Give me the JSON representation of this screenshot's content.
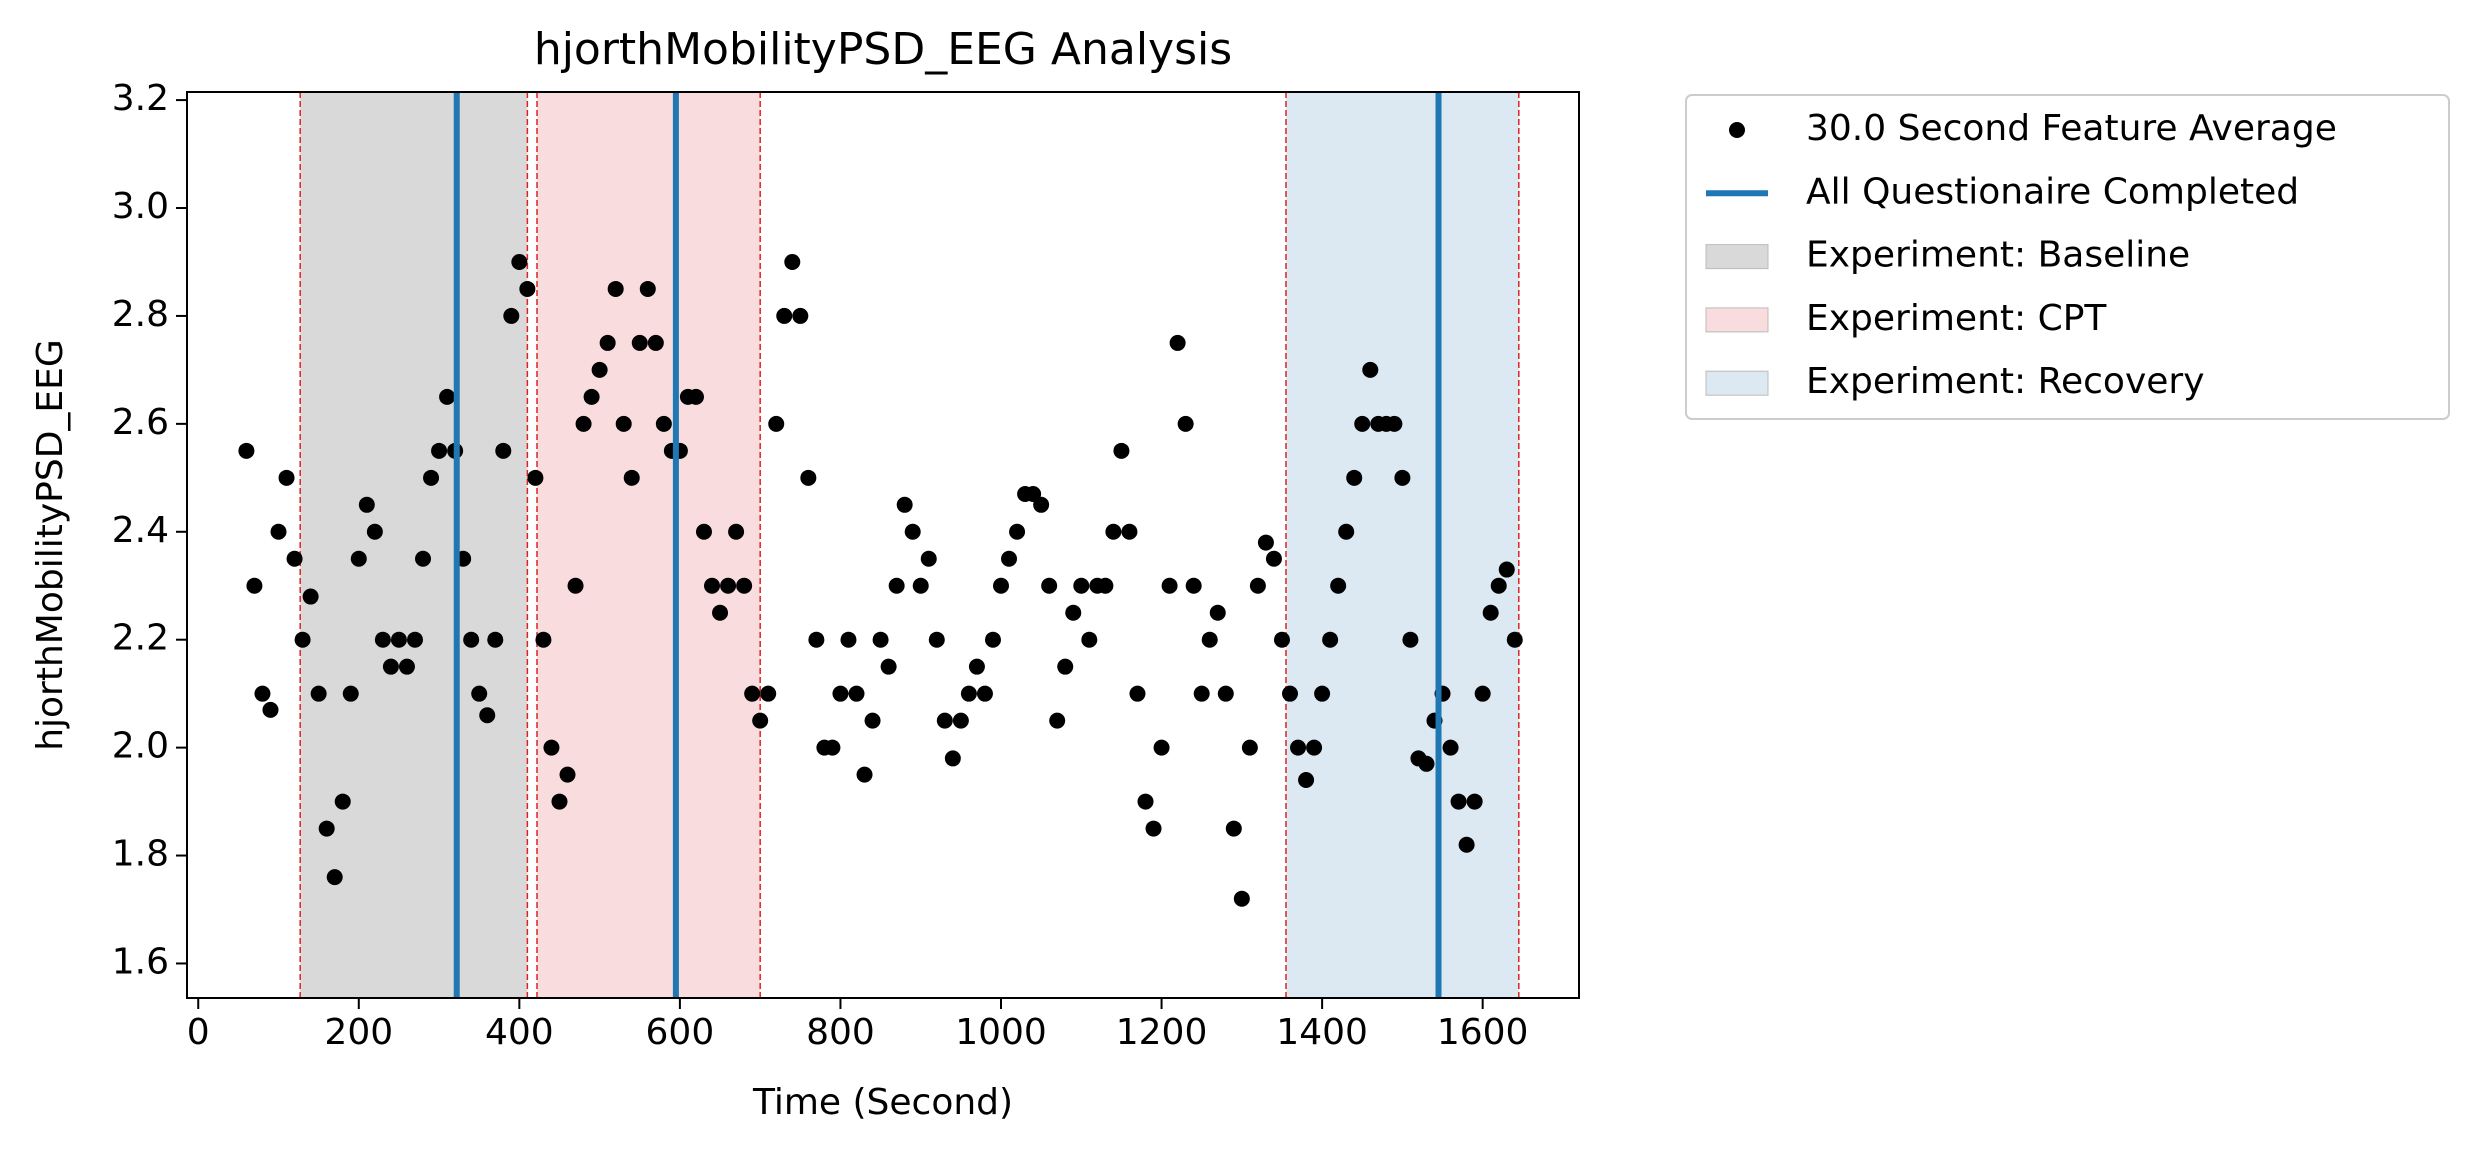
{
  "chart_data": {
    "type": "scatter",
    "title": "hjorthMobilityPSD_EEG Analysis",
    "xlabel": "Time (Second)",
    "ylabel": "hjorthMobilityPSD_EEG",
    "x": [
      60,
      70,
      80,
      90,
      100,
      110,
      120,
      130,
      140,
      150,
      160,
      170,
      180,
      190,
      200,
      210,
      220,
      230,
      240,
      250,
      260,
      270,
      280,
      290,
      300,
      310,
      320,
      330,
      340,
      350,
      360,
      370,
      380,
      390,
      400,
      410,
      420,
      430,
      440,
      450,
      460,
      470,
      480,
      490,
      500,
      510,
      520,
      530,
      540,
      550,
      560,
      570,
      580,
      590,
      600,
      610,
      620,
      630,
      640,
      650,
      660,
      670,
      680,
      690,
      700,
      710,
      720,
      730,
      740,
      750,
      760,
      770,
      780,
      790,
      800,
      810,
      820,
      830,
      840,
      850,
      860,
      870,
      880,
      890,
      900,
      910,
      920,
      930,
      940,
      950,
      960,
      970,
      980,
      990,
      1000,
      1010,
      1020,
      1030,
      1040,
      1050,
      1060,
      1070,
      1080,
      1090,
      1100,
      1110,
      1120,
      1130,
      1140,
      1150,
      1160,
      1170,
      1180,
      1190,
      1200,
      1210,
      1220,
      1230,
      1240,
      1250,
      1260,
      1270,
      1280,
      1290,
      1300,
      1310,
      1320,
      1330,
      1340,
      1350,
      1360,
      1370,
      1380,
      1390,
      1400,
      1410,
      1420,
      1430,
      1440,
      1450,
      1460,
      1470,
      1480,
      1490,
      1500,
      1510,
      1520,
      1530,
      1540,
      1550,
      1560,
      1570,
      1580,
      1590,
      1600,
      1610,
      1620,
      1630,
      1640
    ],
    "series": [
      {
        "name": "30.0 Second Feature Average",
        "color": "#000000",
        "values": [
          2.55,
          2.3,
          2.1,
          2.07,
          2.4,
          2.5,
          2.35,
          2.2,
          2.28,
          2.1,
          1.85,
          1.76,
          1.9,
          2.1,
          2.35,
          2.45,
          2.4,
          2.2,
          2.15,
          2.2,
          2.15,
          2.2,
          2.35,
          2.5,
          2.55,
          2.65,
          2.55,
          2.35,
          2.2,
          2.1,
          2.06,
          2.2,
          2.55,
          2.8,
          2.9,
          2.85,
          2.5,
          2.2,
          2.0,
          1.9,
          1.95,
          2.3,
          2.6,
          2.65,
          2.7,
          2.75,
          2.85,
          2.6,
          2.5,
          2.75,
          2.85,
          2.75,
          2.6,
          2.55,
          2.55,
          2.65,
          2.65,
          2.4,
          2.3,
          2.25,
          2.3,
          2.4,
          2.3,
          2.1,
          2.05,
          2.1,
          2.6,
          2.8,
          2.9,
          2.8,
          2.5,
          2.2,
          2.0,
          2.0,
          2.1,
          2.2,
          2.1,
          1.95,
          2.05,
          2.2,
          2.15,
          2.3,
          2.45,
          2.4,
          2.3,
          2.35,
          2.2,
          2.05,
          1.98,
          2.05,
          2.1,
          2.15,
          2.1,
          2.2,
          2.3,
          2.35,
          2.4,
          2.47,
          2.47,
          2.45,
          2.3,
          2.05,
          2.15,
          2.25,
          2.3,
          2.2,
          2.3,
          2.3,
          2.4,
          2.55,
          2.4,
          2.1,
          1.9,
          1.85,
          2.0,
          2.3,
          2.75,
          2.6,
          2.3,
          2.1,
          2.2,
          2.25,
          2.1,
          1.85,
          1.72,
          2.0,
          2.3,
          2.38,
          2.35,
          2.2,
          2.1,
          2.0,
          1.94,
          2.0,
          2.1,
          2.2,
          2.3,
          2.4,
          2.5,
          2.6,
          2.7,
          2.6,
          2.6,
          2.6,
          2.5,
          2.2,
          1.98,
          1.97,
          2.05,
          2.1,
          2.0,
          1.9,
          1.82,
          1.9,
          2.1,
          2.25,
          2.3,
          2.33,
          2.2
        ]
      }
    ],
    "vlines": {
      "name": "All Questionaire Completed",
      "color": "#1f77b4",
      "x": [
        322,
        595,
        1545
      ]
    },
    "spans": [
      {
        "name": "Experiment: Baseline",
        "color": "#d9d9d9",
        "start": 127,
        "end": 410
      },
      {
        "name": "Experiment: CPT",
        "color": "#f8dcde",
        "start": 422,
        "end": 700
      },
      {
        "name": "Experiment: Recovery",
        "color": "#dce8f2",
        "start": 1355,
        "end": 1645
      }
    ],
    "span_edge_color": "#dd2222",
    "xlim": [
      -14,
      1720
    ],
    "ylim": [
      1.536,
      3.215
    ],
    "xticks": [
      0,
      200,
      400,
      600,
      800,
      1000,
      1200,
      1400,
      1600
    ],
    "yticks": [
      1.6,
      1.8,
      {
        "value": 2,
        "label": "2.0"
      },
      2.2,
      2.4,
      2.6,
      2.8,
      {
        "value": 3,
        "label": "3.0"
      },
      3.2
    ],
    "legend": "outside-upper-right"
  }
}
